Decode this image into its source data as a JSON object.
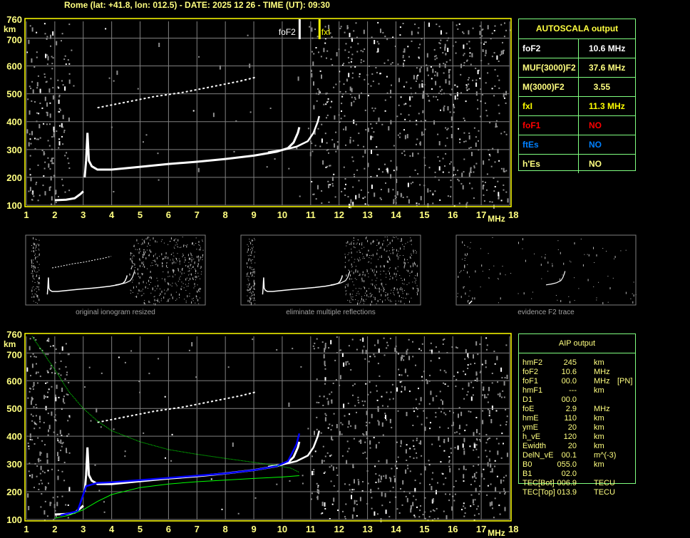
{
  "header": {
    "title": "Rome (lat: +41.8, lon: 012.5) - DATE: 2025 12 26 - TIME (UT): 09:30"
  },
  "colors": {
    "text": "#ffff80",
    "axis_frame": "#ffff00",
    "grid": "#808080",
    "table_border": "#80ff80",
    "trace": "#ffffff",
    "profile": "#00ff00",
    "fitted_trace": "#0000ff",
    "no_f1": "#ff0000",
    "no_es": "#0080ff"
  },
  "autoscala": {
    "title": "AUTOSCALA output",
    "rows": [
      {
        "key": "foF2",
        "value": "10.6 MHz",
        "color": "#ffffff"
      },
      {
        "key": "MUF(3000)F2",
        "value": "37.6 MHz",
        "color": "#ffff80"
      },
      {
        "key": "M(3000)F2",
        "value": "  3.55",
        "color": "#ffff80"
      },
      {
        "key": "fxI",
        "value": "11.3 MHz",
        "color": "#ffff00"
      },
      {
        "key": "foF1",
        "value": "NO",
        "color": "#ff0000"
      },
      {
        "key": "ftEs",
        "value": "NO",
        "color": "#0080ff"
      },
      {
        "key": "h'Es",
        "value": "NO",
        "color": "#ffff80"
      }
    ]
  },
  "aip": {
    "title": "AIP output",
    "rows": [
      {
        "name": "hmF2",
        "value": "245",
        "unit": "km",
        "extra": ""
      },
      {
        "name": "foF2",
        "value": "10.6",
        "unit": "MHz",
        "extra": ""
      },
      {
        "name": "foF1",
        "value": "00.0",
        "unit": "MHz",
        "extra": "[PN]"
      },
      {
        "name": "hmF1",
        "value": "---",
        "unit": "km",
        "extra": ""
      },
      {
        "name": "D1",
        "value": "00.0",
        "unit": "",
        "extra": ""
      },
      {
        "name": "foE",
        "value": "2.9",
        "unit": "MHz",
        "extra": ""
      },
      {
        "name": "hmE",
        "value": "110",
        "unit": "km",
        "extra": ""
      },
      {
        "name": "ymE",
        "value": "20",
        "unit": "km",
        "extra": ""
      },
      {
        "name": "h_vE",
        "value": "120",
        "unit": "km",
        "extra": ""
      },
      {
        "name": "Ewidth",
        "value": "20",
        "unit": "km",
        "extra": ""
      },
      {
        "name": "DelN_vE",
        "value": "00.1",
        "unit": "m^(-3)",
        "extra": ""
      },
      {
        "name": "B0",
        "value": "055.0",
        "unit": "km",
        "extra": ""
      },
      {
        "name": "B1",
        "value": "02.0",
        "unit": "",
        "extra": ""
      },
      {
        "name": "TEC[Bot]",
        "value": "006.9",
        "unit": "TECU",
        "extra": ""
      },
      {
        "name": "TEC[Top]",
        "value": "013.9",
        "unit": "TECU",
        "extra": ""
      }
    ]
  },
  "thumbnails": [
    {
      "caption": "original ionogram resized"
    },
    {
      "caption": "eliminate multiple reflections"
    },
    {
      "caption": "evidence F2 trace"
    }
  ],
  "chart_data": [
    {
      "type": "scatter",
      "name_hint": "",
      "xlabel": "MHz",
      "ylabel": "km",
      "xlim": [
        1,
        18
      ],
      "ylim": [
        100,
        760
      ],
      "xticks": [
        "1",
        "2",
        "3",
        "4",
        "5",
        "6",
        "7",
        "8",
        "9",
        "10",
        "11",
        "12",
        "13",
        "14",
        "15",
        "16",
        "17",
        "18"
      ],
      "yticks": [
        "100",
        "200",
        "300",
        "400",
        "500",
        "600",
        "700",
        "760"
      ],
      "grid": true,
      "markers": [
        {
          "label": "foF2",
          "x": 10.6,
          "color": "#ffffff"
        },
        {
          "label": "fxI",
          "x": 11.3,
          "color": "#ffff00"
        }
      ],
      "traces": {
        "o_trace": [
          [
            3.05,
            200
          ],
          [
            3.1,
            260
          ],
          [
            3.15,
            360
          ],
          [
            3.2,
            260
          ],
          [
            3.3,
            240
          ],
          [
            3.5,
            228
          ],
          [
            4,
            228
          ],
          [
            5,
            238
          ],
          [
            6,
            248
          ],
          [
            7,
            256
          ],
          [
            8,
            266
          ],
          [
            9,
            278
          ],
          [
            9.8,
            292
          ],
          [
            10.2,
            305
          ],
          [
            10.4,
            325
          ],
          [
            10.55,
            360
          ],
          [
            10.6,
            380
          ]
        ],
        "x_trace": [
          [
            9.5,
            290
          ],
          [
            10,
            298
          ],
          [
            10.5,
            310
          ],
          [
            10.9,
            330
          ],
          [
            11.1,
            360
          ],
          [
            11.25,
            400
          ],
          [
            11.3,
            420
          ]
        ],
        "multiple_reflection": [
          [
            3.5,
            450
          ],
          [
            4.5,
            470
          ],
          [
            5.5,
            490
          ],
          [
            6.5,
            505
          ],
          [
            7.5,
            525
          ],
          [
            8.5,
            545
          ],
          [
            9.1,
            560
          ]
        ],
        "e_layer": [
          [
            2,
            118
          ],
          [
            2.4,
            120
          ],
          [
            2.7,
            125
          ],
          [
            2.9,
            140
          ],
          [
            3.0,
            150
          ]
        ]
      }
    },
    {
      "type": "line",
      "xlabel": "MHz",
      "ylabel": "km",
      "xlim": [
        1,
        18
      ],
      "ylim": [
        100,
        760
      ],
      "xticks": [
        "1",
        "2",
        "3",
        "4",
        "5",
        "6",
        "7",
        "8",
        "9",
        "10",
        "11",
        "12",
        "13",
        "14",
        "15",
        "16",
        "17",
        "18"
      ],
      "yticks": [
        "100",
        "200",
        "300",
        "400",
        "500",
        "600",
        "700",
        "760"
      ],
      "grid": true,
      "profile_upper": [
        [
          1.2,
          760
        ],
        [
          1.6,
          700
        ],
        [
          2,
          640
        ],
        [
          2.5,
          560
        ],
        [
          3,
          500
        ],
        [
          3.5,
          455
        ],
        [
          4,
          420
        ],
        [
          5,
          380
        ],
        [
          6,
          352
        ],
        [
          7,
          335
        ],
        [
          8,
          320
        ],
        [
          9,
          306
        ],
        [
          9.8,
          295
        ],
        [
          10.3,
          285
        ],
        [
          10.6,
          270
        ]
      ],
      "profile_lower": [
        [
          2,
          105
        ],
        [
          2.5,
          115
        ],
        [
          3,
          135
        ],
        [
          3.5,
          165
        ],
        [
          4,
          190
        ],
        [
          5,
          215
        ],
        [
          6,
          228
        ],
        [
          7,
          236
        ],
        [
          8,
          242
        ],
        [
          9,
          248
        ],
        [
          10,
          253
        ],
        [
          10.6,
          258
        ]
      ],
      "fitted_trace": [
        [
          2.2,
          115
        ],
        [
          2.8,
          130
        ],
        [
          3.1,
          220
        ],
        [
          3.5,
          232
        ],
        [
          4,
          234
        ],
        [
          5,
          242
        ],
        [
          6,
          250
        ],
        [
          7,
          258
        ],
        [
          8,
          266
        ],
        [
          9,
          278
        ],
        [
          9.8,
          292
        ],
        [
          10.2,
          310
        ],
        [
          10.5,
          370
        ],
        [
          10.6,
          410
        ]
      ]
    }
  ]
}
